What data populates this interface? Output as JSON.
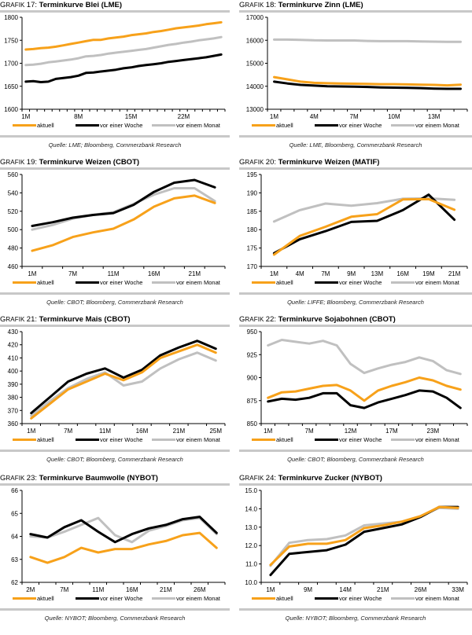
{
  "legend": {
    "aktuell": "aktuell",
    "woche": "vor einer Woche",
    "monat": "vor einem Monat"
  },
  "colors": {
    "aktuell": "#f7a11a",
    "woche": "#000000",
    "monat": "#c0c0c0"
  },
  "title_prefix": "Grafik",
  "chart_data": [
    {
      "type": "line",
      "number": "17",
      "title": "Terminkurve Blei (LME)",
      "source": "Quelle: LME; Bloomberg, Commerzbank Research",
      "ylim": [
        1600,
        1800
      ],
      "yticks": [
        1600,
        1650,
        1700,
        1750,
        1800
      ],
      "xticklabels": [
        "1M",
        "8M",
        "15M",
        "22M"
      ],
      "xtick_positions": [
        0,
        7,
        14,
        21
      ],
      "n": 27,
      "series": [
        {
          "name": "aktuell",
          "values": [
            1730,
            1731,
            1733,
            1734,
            1736,
            1739,
            1742,
            1745,
            1748,
            1751,
            1751,
            1754,
            1756,
            1758,
            1761,
            1763,
            1765,
            1768,
            1770,
            1773,
            1776,
            1778,
            1780,
            1782,
            1785,
            1787,
            1789
          ]
        },
        {
          "name": "vor einer Woche",
          "values": [
            1660,
            1661,
            1659,
            1660,
            1666,
            1668,
            1670,
            1673,
            1679,
            1680,
            1682,
            1684,
            1686,
            1689,
            1691,
            1694,
            1696,
            1698,
            1700,
            1703,
            1705,
            1707,
            1709,
            1711,
            1713,
            1716,
            1719
          ]
        },
        {
          "name": "vor einem Monat",
          "values": [
            1696,
            1697,
            1699,
            1702,
            1704,
            1706,
            1708,
            1711,
            1715,
            1716,
            1718,
            1721,
            1723,
            1725,
            1727,
            1729,
            1731,
            1734,
            1737,
            1740,
            1742,
            1745,
            1747,
            1750,
            1752,
            1754,
            1757
          ]
        }
      ]
    },
    {
      "type": "line",
      "number": "18",
      "title": "Terminkurve Zinn (LME)",
      "source": "Quelle: LME, Bloomberg, Commerzbank Research",
      "ylim": [
        13000,
        17000
      ],
      "yticks": [
        13000,
        14000,
        15000,
        16000,
        17000
      ],
      "xticklabels": [
        "1M",
        "4M",
        "7M",
        "10M",
        "13M"
      ],
      "xtick_positions": [
        0,
        3,
        6,
        9,
        12
      ],
      "n": 15,
      "series": [
        {
          "name": "aktuell",
          "values": [
            14400,
            14300,
            14200,
            14150,
            14130,
            14120,
            14110,
            14100,
            14090,
            14090,
            14080,
            14070,
            14060,
            14040,
            14070
          ]
        },
        {
          "name": "vor einer Woche",
          "values": [
            14200,
            14120,
            14060,
            14030,
            14000,
            13990,
            13980,
            13970,
            13950,
            13940,
            13930,
            13920,
            13900,
            13890,
            13890
          ]
        },
        {
          "name": "vor einem Monat",
          "values": [
            16030,
            16030,
            16020,
            16000,
            15990,
            15990,
            15990,
            15970,
            15960,
            15960,
            15960,
            15950,
            15940,
            15930,
            15930
          ]
        }
      ]
    },
    {
      "type": "line",
      "number": "19",
      "title": "Terminkurve Weizen (CBOT)",
      "source": "Quelle: CBOT; Bloomberg, Commerzbank Research",
      "ylim": [
        460,
        560
      ],
      "yticks": [
        460,
        480,
        500,
        520,
        540,
        560
      ],
      "xticklabels": [
        "1M",
        "7M",
        "11M",
        "16M",
        "21M"
      ],
      "xtick_positions": [
        0,
        2,
        4,
        6,
        8
      ],
      "n": 10,
      "series": [
        {
          "name": "aktuell",
          "values": [
            477,
            483,
            492,
            497,
            501,
            511,
            525,
            534,
            537,
            529
          ]
        },
        {
          "name": "vor einer Woche",
          "values": [
            504,
            508,
            513,
            516,
            518,
            527,
            541,
            551,
            554,
            546
          ]
        },
        {
          "name": "vor einem Monat",
          "values": [
            500,
            505,
            512,
            516,
            519,
            528,
            538,
            545,
            545,
            531
          ]
        }
      ]
    },
    {
      "type": "line",
      "number": "20",
      "title": "Terminkurve Weizen (MATIF)",
      "source": "Quelle: LIFFE; Bloomberg, Commerzbank Research",
      "ylim": [
        170,
        195
      ],
      "yticks": [
        170,
        175,
        180,
        185,
        190,
        195
      ],
      "xticklabels": [
        "1M",
        "4M",
        "7M",
        "9M",
        "13M",
        "16M",
        "19M",
        "21M"
      ],
      "xtick_positions": [
        0,
        1,
        2,
        3,
        4,
        5,
        6,
        7
      ],
      "n": 8,
      "series": [
        {
          "name": "aktuell",
          "values": [
            173.2,
            178.3,
            180.8,
            183.5,
            184.2,
            188.2,
            188.3,
            185.4
          ]
        },
        {
          "name": "vor einer Woche",
          "values": [
            173.6,
            177.4,
            179.6,
            182.1,
            182.4,
            185.3,
            189.5,
            182.7
          ]
        },
        {
          "name": "vor einem Monat",
          "values": [
            182.2,
            185.3,
            187.1,
            186.5,
            187.2,
            188.4,
            188.5,
            188.1
          ]
        }
      ]
    },
    {
      "type": "line",
      "number": "21",
      "title": "Terminkurve Mais (CBOT)",
      "source": "Quelle: CBOT; Bloomberg, Commerzbank Research",
      "ylim": [
        360,
        430
      ],
      "yticks": [
        360,
        370,
        380,
        390,
        400,
        410,
        420,
        430
      ],
      "xticklabels": [
        "1M",
        "7M",
        "11M",
        "16M",
        "21M",
        "25M"
      ],
      "xtick_positions": [
        0,
        2,
        4,
        6,
        8,
        10
      ],
      "n": 11,
      "series": [
        {
          "name": "aktuell",
          "values": [
            364,
            375,
            386,
            392,
            398,
            393,
            399,
            410,
            415,
            420,
            414
          ]
        },
        {
          "name": "vor einer Woche",
          "values": [
            368,
            380,
            392,
            398,
            402,
            395,
            401,
            412,
            418,
            423,
            417
          ]
        },
        {
          "name": "vor einem Monat",
          "values": [
            366,
            377,
            387,
            394,
            399,
            389,
            392,
            402,
            409,
            414,
            408
          ]
        }
      ]
    },
    {
      "type": "line",
      "number": "22",
      "title": "Terminkurve Sojabohnen (CBOT)",
      "source": "Quelle: CBOT; Bloomberg, Commerzbank Research",
      "ylim": [
        850,
        950
      ],
      "yticks": [
        850,
        875,
        900,
        925,
        950
      ],
      "xticklabels": [
        "1M",
        "7M",
        "12M",
        "17M",
        "23M"
      ],
      "xtick_positions": [
        0,
        3,
        6,
        9,
        12
      ],
      "n": 15,
      "series": [
        {
          "name": "aktuell",
          "values": [
            878,
            884,
            885,
            888,
            891,
            892,
            886,
            875,
            886,
            891,
            895,
            900,
            897,
            891,
            887
          ]
        },
        {
          "name": "vor einer Woche",
          "values": [
            874,
            877,
            876,
            878,
            883,
            883,
            870,
            867,
            873,
            877,
            881,
            886,
            885,
            878,
            867
          ]
        },
        {
          "name": "vor einem Monat",
          "values": [
            935,
            941,
            939,
            937,
            940,
            935,
            915,
            905,
            910,
            914,
            917,
            922,
            918,
            908,
            904
          ]
        }
      ]
    },
    {
      "type": "line",
      "number": "23",
      "title": "Terminkurve Baumwolle (NYBOT)",
      "source": "Quelle: NYBOT; Bloomberg, Commerzbank Research",
      "ylim": [
        62,
        66
      ],
      "yticks": [
        62,
        63,
        64,
        65,
        66
      ],
      "xticklabels": [
        "2M",
        "7M",
        "11M",
        "16M",
        "21M",
        "26M"
      ],
      "xtick_positions": [
        0,
        2,
        4,
        6,
        8,
        10
      ],
      "n": 12,
      "series": [
        {
          "name": "aktuell",
          "values": [
            63.1,
            62.85,
            63.1,
            63.5,
            63.3,
            63.45,
            63.45,
            63.65,
            63.8,
            64.05,
            64.15,
            63.5
          ]
        },
        {
          "name": "vor einer Woche",
          "values": [
            64.1,
            63.95,
            64.4,
            64.7,
            64.2,
            63.75,
            64.1,
            64.35,
            64.5,
            64.75,
            64.85,
            64.15
          ]
        },
        {
          "name": "vor einem Monat",
          "values": [
            64.0,
            63.95,
            64.2,
            64.5,
            64.8,
            64.05,
            63.75,
            64.25,
            64.45,
            64.7,
            64.8,
            64.1
          ]
        }
      ]
    },
    {
      "type": "line",
      "number": "24",
      "title": "Terminkurve Zucker (NYBOT)",
      "source": "Quelle: NYBOT; Bloomberg, Commerzbank Research",
      "ylim": [
        10.0,
        15.0
      ],
      "yticks": [
        "10.0",
        "11.0",
        "12.0",
        "13.0",
        "14.0",
        "15.0"
      ],
      "xticklabels": [
        "1M",
        "9M",
        "14M",
        "21M",
        "26M",
        "33M"
      ],
      "xtick_positions": [
        0,
        2,
        4,
        6,
        8,
        10
      ],
      "n": 11,
      "series": [
        {
          "name": "aktuell",
          "values": [
            10.95,
            11.95,
            12.1,
            12.1,
            12.3,
            12.95,
            13.1,
            13.3,
            13.6,
            14.1,
            14.05
          ]
        },
        {
          "name": "vor einer Woche",
          "values": [
            10.4,
            11.55,
            11.65,
            11.75,
            12.05,
            12.75,
            12.95,
            13.15,
            13.55,
            14.1,
            14.1
          ]
        },
        {
          "name": "vor einem Monat",
          "values": [
            10.9,
            12.15,
            12.3,
            12.35,
            12.55,
            13.1,
            13.2,
            13.3,
            13.6,
            14.05,
            14.0
          ]
        }
      ]
    }
  ]
}
